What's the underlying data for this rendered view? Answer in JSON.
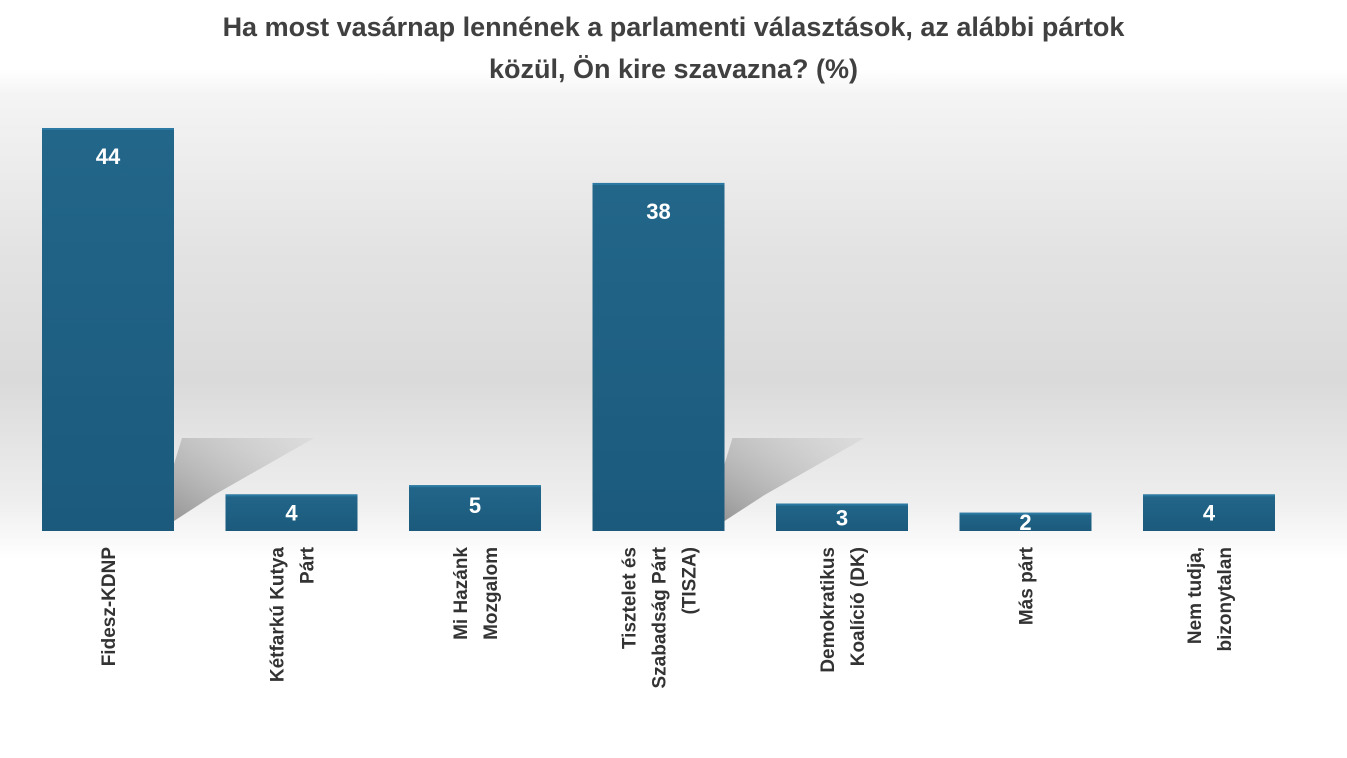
{
  "chart_data": {
    "type": "bar",
    "title": "Ha most vasárnap lennének a parlamenti választások, az alábbi pártok közül, Ön kire szavazna? (%)",
    "title_lines": [
      "Ha most vasárnap lennének a parlamenti választások, az alábbi pártok",
      "közül, Ön kire szavazna? (%)"
    ],
    "categories": [
      "Fidesz-KDNP",
      "Kétfarkú Kutya Párt",
      "Mi Hazánk Mozgalom",
      "Tisztelet és Szabadság Párt (TISZA)",
      "Demokratikus Koalíció (DK)",
      "Más párt",
      "Nem tudja, bizonytalan"
    ],
    "category_lines": [
      [
        "Fidesz-KDNP"
      ],
      [
        "Kétfarkú Kutya",
        "Párt"
      ],
      [
        "Mi Hazánk",
        "Mozgalom"
      ],
      [
        "Tisztelet és",
        "Szabadság Párt",
        "(TISZA)"
      ],
      [
        "Demokratikus",
        "Koalíció (DK)"
      ],
      [
        "Más párt"
      ],
      [
        "Nem tudja,",
        "bizonytalan"
      ]
    ],
    "values": [
      44,
      4,
      5,
      38,
      3,
      2,
      4
    ],
    "data_labels": [
      "44",
      "4",
      "5",
      "38",
      "3",
      "2",
      "4"
    ],
    "xlabel": "",
    "ylabel": "",
    "ylim": [
      0,
      44
    ],
    "grid": false,
    "legend": "none",
    "bar_color": "#1b5a7c",
    "bar_color_light": "#22668a",
    "shadow_color": "#9a9a9a"
  }
}
